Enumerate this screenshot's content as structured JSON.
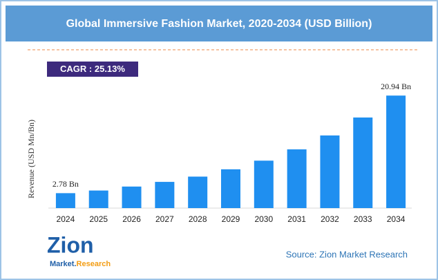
{
  "chart_data": {
    "type": "bar",
    "title": "Global Immersive Fashion Market, 2020-2034 (USD Billion)",
    "annotation": "CAGR : 25.13%",
    "y_label": "Revenue (USD Mn/Bn)",
    "categories": [
      "2024",
      "2025",
      "2026",
      "2027",
      "2028",
      "2029",
      "2030",
      "2031",
      "2032",
      "2033",
      "2034"
    ],
    "values": [
      2.78,
      3.27,
      4.01,
      4.88,
      5.86,
      7.22,
      8.83,
      10.93,
      13.52,
      16.86,
      20.94
    ],
    "value_labels": [
      "2.78 Bn",
      null,
      null,
      null,
      null,
      null,
      null,
      null,
      null,
      null,
      "20.94 Bn"
    ],
    "color": "#1f8ff0",
    "ylim": [
      0,
      22
    ],
    "grid": false,
    "source": "Source: Zion Market Research"
  },
  "logo": {
    "name": "Zion",
    "tagline_1": "Market.",
    "tagline_2": "Research"
  }
}
